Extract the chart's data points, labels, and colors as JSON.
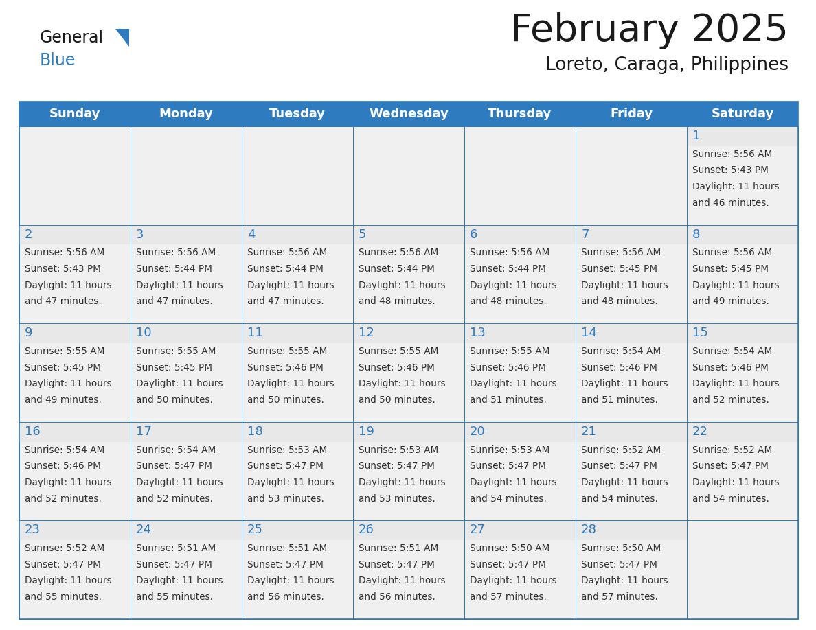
{
  "title": "February 2025",
  "subtitle": "Loreto, Caraga, Philippines",
  "header_bg": "#2E7BBF",
  "header_text_color": "#FFFFFF",
  "cell_bg": "#F0F0F0",
  "day_num_bg": "#E8E8E8",
  "border_color": "#2E7BBF",
  "day_headers": [
    "Sunday",
    "Monday",
    "Tuesday",
    "Wednesday",
    "Thursday",
    "Friday",
    "Saturday"
  ],
  "title_color": "#1a1a1a",
  "subtitle_color": "#1a1a1a",
  "day_num_color": "#2E7BBF",
  "text_color": "#333333",
  "logo_general_color": "#1a1a1a",
  "logo_blue_color": "#2E7BBF",
  "calendar": [
    [
      null,
      null,
      null,
      null,
      null,
      null,
      {
        "day": 1,
        "sunrise": "5:56 AM",
        "sunset": "5:43 PM",
        "daylight": "11 hours and 46 minutes."
      }
    ],
    [
      {
        "day": 2,
        "sunrise": "5:56 AM",
        "sunset": "5:43 PM",
        "daylight": "11 hours and 47 minutes."
      },
      {
        "day": 3,
        "sunrise": "5:56 AM",
        "sunset": "5:44 PM",
        "daylight": "11 hours and 47 minutes."
      },
      {
        "day": 4,
        "sunrise": "5:56 AM",
        "sunset": "5:44 PM",
        "daylight": "11 hours and 47 minutes."
      },
      {
        "day": 5,
        "sunrise": "5:56 AM",
        "sunset": "5:44 PM",
        "daylight": "11 hours and 48 minutes."
      },
      {
        "day": 6,
        "sunrise": "5:56 AM",
        "sunset": "5:44 PM",
        "daylight": "11 hours and 48 minutes."
      },
      {
        "day": 7,
        "sunrise": "5:56 AM",
        "sunset": "5:45 PM",
        "daylight": "11 hours and 48 minutes."
      },
      {
        "day": 8,
        "sunrise": "5:56 AM",
        "sunset": "5:45 PM",
        "daylight": "11 hours and 49 minutes."
      }
    ],
    [
      {
        "day": 9,
        "sunrise": "5:55 AM",
        "sunset": "5:45 PM",
        "daylight": "11 hours and 49 minutes."
      },
      {
        "day": 10,
        "sunrise": "5:55 AM",
        "sunset": "5:45 PM",
        "daylight": "11 hours and 50 minutes."
      },
      {
        "day": 11,
        "sunrise": "5:55 AM",
        "sunset": "5:46 PM",
        "daylight": "11 hours and 50 minutes."
      },
      {
        "day": 12,
        "sunrise": "5:55 AM",
        "sunset": "5:46 PM",
        "daylight": "11 hours and 50 minutes."
      },
      {
        "day": 13,
        "sunrise": "5:55 AM",
        "sunset": "5:46 PM",
        "daylight": "11 hours and 51 minutes."
      },
      {
        "day": 14,
        "sunrise": "5:54 AM",
        "sunset": "5:46 PM",
        "daylight": "11 hours and 51 minutes."
      },
      {
        "day": 15,
        "sunrise": "5:54 AM",
        "sunset": "5:46 PM",
        "daylight": "11 hours and 52 minutes."
      }
    ],
    [
      {
        "day": 16,
        "sunrise": "5:54 AM",
        "sunset": "5:46 PM",
        "daylight": "11 hours and 52 minutes."
      },
      {
        "day": 17,
        "sunrise": "5:54 AM",
        "sunset": "5:47 PM",
        "daylight": "11 hours and 52 minutes."
      },
      {
        "day": 18,
        "sunrise": "5:53 AM",
        "sunset": "5:47 PM",
        "daylight": "11 hours and 53 minutes."
      },
      {
        "day": 19,
        "sunrise": "5:53 AM",
        "sunset": "5:47 PM",
        "daylight": "11 hours and 53 minutes."
      },
      {
        "day": 20,
        "sunrise": "5:53 AM",
        "sunset": "5:47 PM",
        "daylight": "11 hours and 54 minutes."
      },
      {
        "day": 21,
        "sunrise": "5:52 AM",
        "sunset": "5:47 PM",
        "daylight": "11 hours and 54 minutes."
      },
      {
        "day": 22,
        "sunrise": "5:52 AM",
        "sunset": "5:47 PM",
        "daylight": "11 hours and 54 minutes."
      }
    ],
    [
      {
        "day": 23,
        "sunrise": "5:52 AM",
        "sunset": "5:47 PM",
        "daylight": "11 hours and 55 minutes."
      },
      {
        "day": 24,
        "sunrise": "5:51 AM",
        "sunset": "5:47 PM",
        "daylight": "11 hours and 55 minutes."
      },
      {
        "day": 25,
        "sunrise": "5:51 AM",
        "sunset": "5:47 PM",
        "daylight": "11 hours and 56 minutes."
      },
      {
        "day": 26,
        "sunrise": "5:51 AM",
        "sunset": "5:47 PM",
        "daylight": "11 hours and 56 minutes."
      },
      {
        "day": 27,
        "sunrise": "5:50 AM",
        "sunset": "5:47 PM",
        "daylight": "11 hours and 57 minutes."
      },
      {
        "day": 28,
        "sunrise": "5:50 AM",
        "sunset": "5:47 PM",
        "daylight": "11 hours and 57 minutes."
      },
      null
    ]
  ]
}
